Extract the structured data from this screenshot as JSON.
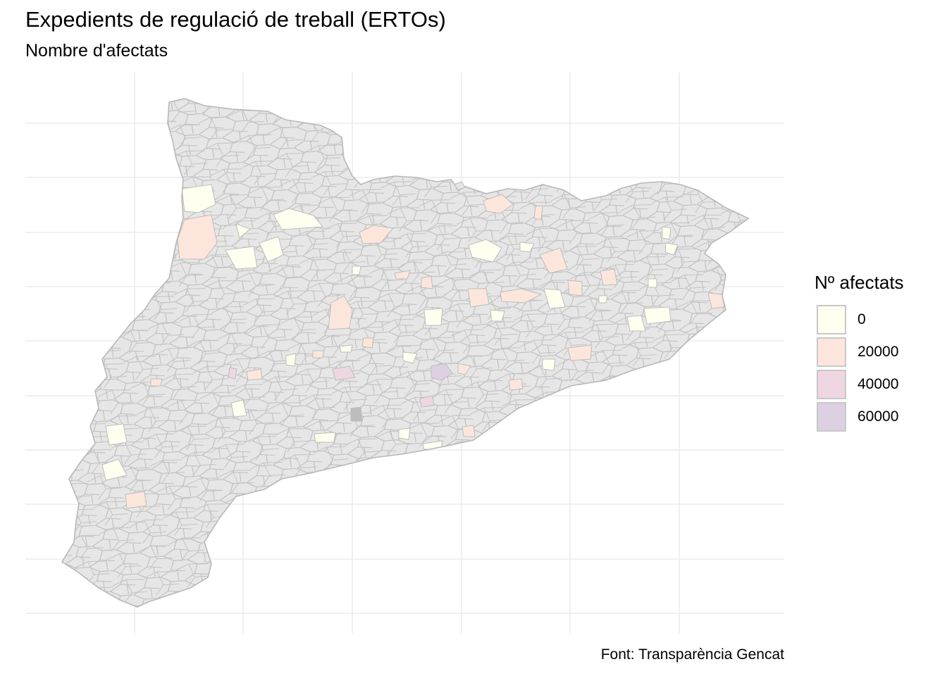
{
  "title": "Expedients de regulació de treball (ERTOs)",
  "subtitle": "Nombre d'afectats",
  "caption": "Font: Transparència Gencat",
  "legend": {
    "title": "Nº afectats",
    "items": [
      {
        "label": "0",
        "value": 0,
        "color": "#FFFFF0"
      },
      {
        "label": "20000",
        "value": 20000,
        "color": "#FCE6DC"
      },
      {
        "label": "40000",
        "value": 40000,
        "color": "#EED6E2"
      },
      {
        "label": "60000",
        "value": 60000,
        "color": "#DDD0E2"
      }
    ]
  },
  "colors": {
    "no_data_fill": "#E6E6E6",
    "boundary": "#B8B8B8",
    "grid": "#EBEBEB"
  },
  "grid": true
}
